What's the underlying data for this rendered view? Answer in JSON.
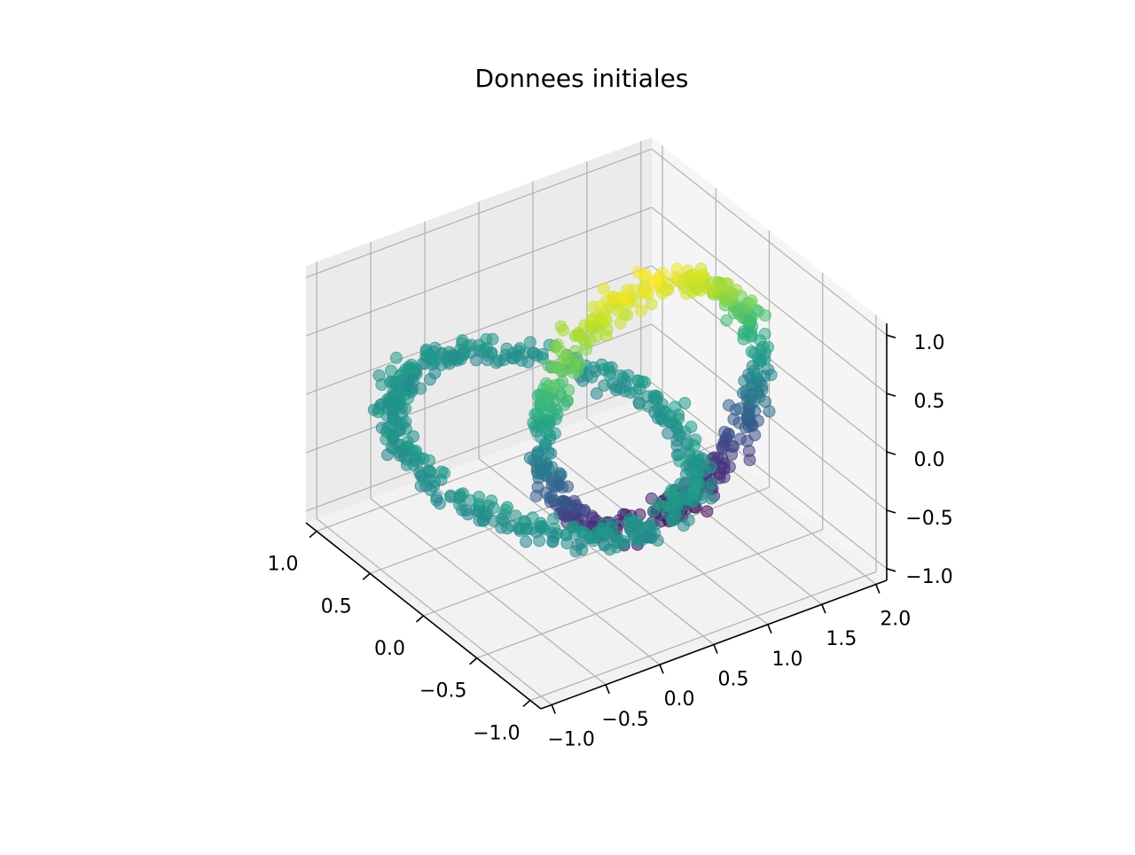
{
  "chart_data": {
    "type": "scatter",
    "projection": "3d",
    "title": "Donnees initiales",
    "xlabel": "",
    "ylabel": "",
    "zlabel": "",
    "grid": true,
    "colormap": "viridis",
    "xlim": [
      -1.1,
      1.1
    ],
    "ylim": [
      -1.1,
      2.1
    ],
    "zlim": [
      -1.1,
      1.1
    ],
    "x_ticks": [
      -1.0,
      -0.5,
      0.0,
      0.5,
      1.0
    ],
    "x_tick_labels": [
      "−1.0",
      "−0.5",
      "0.0",
      "0.5",
      "1.0"
    ],
    "y_ticks": [
      -1.0,
      -0.5,
      0.0,
      0.5,
      1.0,
      1.5,
      2.0
    ],
    "y_tick_labels": [
      "−1.0",
      "−0.5",
      "0.0",
      "0.5",
      "1.0",
      "1.5",
      "2.0"
    ],
    "z_ticks": [
      -1.0,
      -0.5,
      0.0,
      0.5,
      1.0
    ],
    "z_tick_labels": [
      "−1.0",
      "−0.5",
      "0.0",
      "0.5",
      "1.0"
    ],
    "series": [
      {
        "shape": "two interlocking noisy circles",
        "ring_a": {
          "center": [
            0.0,
            0.0,
            0.0
          ],
          "radius": 1.0,
          "plane": "x-y",
          "points": 500
        },
        "ring_b": {
          "center": [
            0.0,
            1.0,
            0.0
          ],
          "radius": 1.0,
          "plane": "y-z",
          "points": 500
        },
        "noise": 0.05,
        "color_by": "z",
        "alpha": 0.4
      }
    ]
  }
}
